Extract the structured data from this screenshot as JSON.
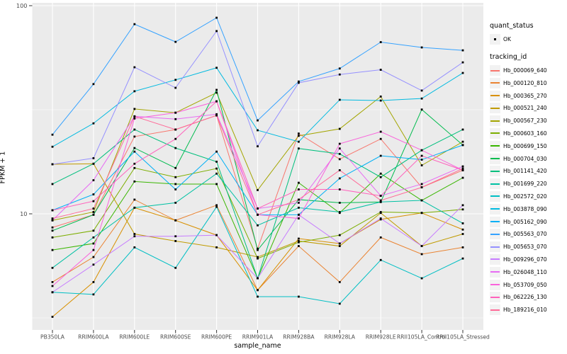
{
  "axes": {
    "y_label": "FPKM + 1",
    "x_label": "sample_name",
    "y_tick_labels": [
      "100",
      "10"
    ],
    "y_tick_values": [
      100,
      10
    ]
  },
  "legend": {
    "quant_status_title": "quant_status",
    "quant_status_items": [
      {
        "label": "OK",
        "marker": "black-point"
      }
    ],
    "tracking_id_title": "tracking_id"
  },
  "colors": {
    "panel_background": "#EBEBEB",
    "grid_line": "#FFFFFF",
    "tick_text": "#4D4D4D",
    "axis_title_text": "#000000",
    "point_marker": "#000000",
    "legend_key_background": "#F2F2F2"
  },
  "chart_data": {
    "type": "line",
    "title": "",
    "xlabel": "sample_name",
    "ylabel": "FPKM + 1",
    "y_scale": "log10",
    "ylim": [
      2.9,
      105
    ],
    "y_major_gridlines": [
      10,
      100
    ],
    "y_minor_gridlines": [
      3.162,
      31.62
    ],
    "grid": "white major+minor on gray panel, vertical line at each category",
    "legend_position": "right",
    "point_marker": "small black square at every data point",
    "categories": [
      "PB350LA",
      "RRIM600LA",
      "RRIM600LE",
      "RRIM600SE",
      "RRIM600PE",
      "RRIM901LA",
      "RRIM928BA",
      "RRIM928LA",
      "RRIM928LE",
      "RRII105LA_Control",
      "RRII105LA_Stressed"
    ],
    "series": [
      {
        "name": "Hb_000069_640",
        "color": "#F8766D",
        "values": [
          8.6,
          9.9,
          23.5,
          25.4,
          29.7,
          6.8,
          24.3,
          18.3,
          22.9,
          13.4,
          16.2
        ]
      },
      {
        "name": "Hb_000120_810",
        "color": "#EA8331",
        "values": [
          4.7,
          6.2,
          11.7,
          9.3,
          11.0,
          4.3,
          7.0,
          4.7,
          7.7,
          6.4,
          6.9
        ]
      },
      {
        "name": "Hb_000365_270",
        "color": "#D89000",
        "values": [
          3.2,
          4.7,
          10.7,
          9.3,
          7.9,
          4.3,
          7.6,
          7.2,
          9.4,
          10.1,
          8.4
        ]
      },
      {
        "name": "Hb_000521_240",
        "color": "#C09B00",
        "values": [
          17.3,
          17.4,
          8.0,
          7.4,
          6.9,
          6.2,
          7.4,
          7.0,
          10.1,
          7.0,
          8.0
        ]
      },
      {
        "name": "Hb_000567_230",
        "color": "#A3A500",
        "values": [
          9.3,
          10.2,
          31.9,
          30.6,
          38.2,
          13.0,
          23.7,
          25.6,
          36.6,
          17.1,
          22.2
        ]
      },
      {
        "name": "Hb_000603_160",
        "color": "#7CAE00",
        "values": [
          7.7,
          8.3,
          16.6,
          15.0,
          16.5,
          6.1,
          7.3,
          7.9,
          10.2,
          10.1,
          10.5
        ]
      },
      {
        "name": "Hb_000699_150",
        "color": "#39B600",
        "values": [
          6.7,
          7.2,
          14.3,
          13.9,
          13.9,
          4.9,
          14.1,
          10.1,
          15.6,
          11.6,
          14.9
        ]
      },
      {
        "name": "Hb_000704_030",
        "color": "#00BB4E",
        "values": [
          8.3,
          9.9,
          20.7,
          16.6,
          39.4,
          6.7,
          11.7,
          11.3,
          11.4,
          31.7,
          21.4
        ]
      },
      {
        "name": "Hb_001141_420",
        "color": "#00BF7D",
        "values": [
          13.9,
          17.4,
          25.4,
          20.7,
          17.8,
          4.9,
          20.6,
          19.4,
          15.0,
          20.2,
          25.4
        ]
      },
      {
        "name": "Hb_001699_220",
        "color": "#00C1A3",
        "values": [
          5.5,
          7.7,
          10.7,
          11.3,
          15.6,
          8.8,
          10.7,
          10.2,
          11.4,
          11.6,
          9.0
        ]
      },
      {
        "name": "Hb_002572_020",
        "color": "#00BFC4",
        "values": [
          4.2,
          4.1,
          6.9,
          5.5,
          10.8,
          4.0,
          4.0,
          3.7,
          6.0,
          4.9,
          6.1
        ]
      },
      {
        "name": "Hb_003878_090",
        "color": "#00BAE0",
        "values": [
          21.0,
          27.2,
          38.8,
          44.0,
          50.3,
          25.2,
          22.2,
          35.3,
          35.0,
          35.8,
          47.5
        ]
      },
      {
        "name": "Hb_005162_090",
        "color": "#00B0F6",
        "values": [
          10.4,
          12.4,
          19.9,
          13.1,
          19.9,
          9.9,
          9.9,
          14.8,
          19.0,
          18.2,
          21.4
        ]
      },
      {
        "name": "Hb_005563_070",
        "color": "#35A2FF",
        "values": [
          24.0,
          42.0,
          81.5,
          67.0,
          87.5,
          28.1,
          43.2,
          49.9,
          66.8,
          63.0,
          61.0
        ]
      },
      {
        "name": "Hb_005653_070",
        "color": "#9590FF",
        "values": [
          17.3,
          18.5,
          50.6,
          40.3,
          75.5,
          21.1,
          42.6,
          46.7,
          49.2,
          39.1,
          53.4
        ]
      },
      {
        "name": "Hb_009296_070",
        "color": "#C77CFF",
        "values": [
          4.2,
          5.7,
          7.8,
          7.8,
          7.9,
          4.9,
          9.9,
          7.2,
          9.5,
          7.0,
          11.0
        ]
      },
      {
        "name": "Hb_026048_110",
        "color": "#E76BF3",
        "values": [
          9.3,
          14.5,
          29.4,
          28.5,
          30.1,
          10.6,
          11.3,
          20.6,
          12.2,
          13.9,
          16.9
        ]
      },
      {
        "name": "Hb_053709_050",
        "color": "#FA62DB",
        "values": [
          4.5,
          6.7,
          28.7,
          30.6,
          34.7,
          9.9,
          9.5,
          21.7,
          24.8,
          20.2,
          16.2
        ]
      },
      {
        "name": "Hb_062226_130",
        "color": "#FF62BC",
        "values": [
          10.4,
          11.5,
          17.4,
          22.9,
          34.7,
          10.6,
          13.1,
          13.1,
          12.2,
          19.0,
          16.2
        ]
      },
      {
        "name": "Hb_189216_010",
        "color": "#FF6A98",
        "values": [
          9.5,
          10.6,
          29.4,
          25.4,
          29.7,
          9.9,
          11.7,
          16.2,
          11.6,
          13.4,
          16.5
        ]
      }
    ]
  }
}
